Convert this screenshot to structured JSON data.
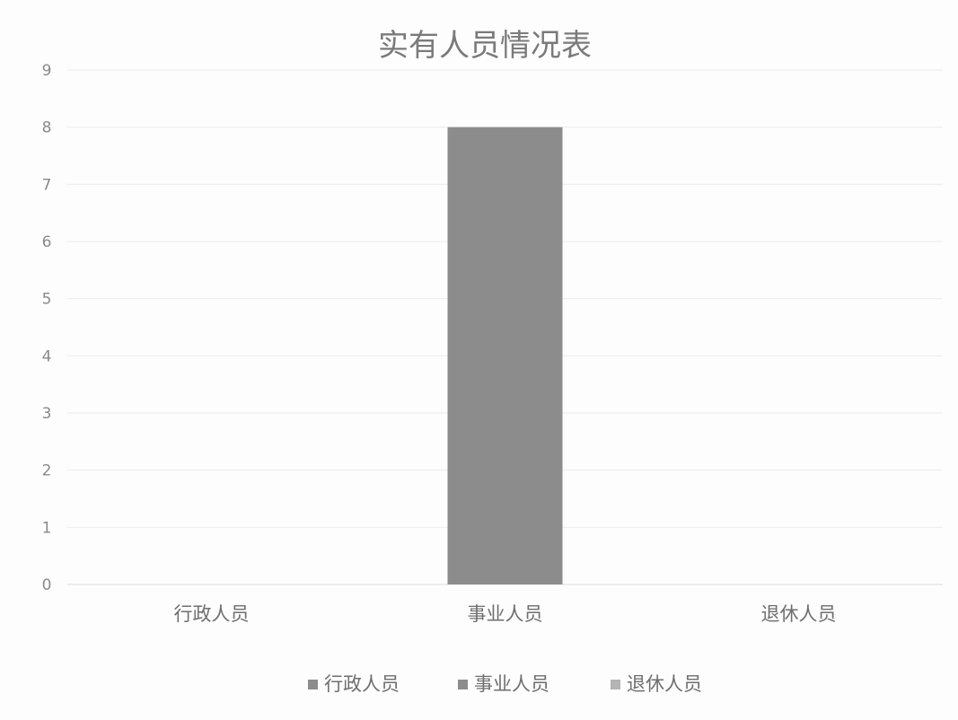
{
  "chart_data": {
    "type": "bar",
    "title": "实有人员情况表",
    "xlabel": "",
    "ylabel": "",
    "categories": [
      "行政人员",
      "事业人员",
      "退休人员"
    ],
    "series": [
      {
        "name": "行政人员",
        "values": [
          0,
          null,
          null
        ],
        "color": "#8c8c8c"
      },
      {
        "name": "事业人员",
        "values": [
          null,
          8,
          null
        ],
        "color": "#8c8c8c"
      },
      {
        "name": "退休人员",
        "values": [
          null,
          null,
          0
        ],
        "color": "#b4b4b4"
      }
    ],
    "ylim": [
      0,
      9
    ],
    "yticks": [
      "0",
      "1",
      "2",
      "3",
      "4",
      "5",
      "6",
      "7",
      "8",
      "9"
    ],
    "grid": true,
    "legend_position": "bottom"
  }
}
